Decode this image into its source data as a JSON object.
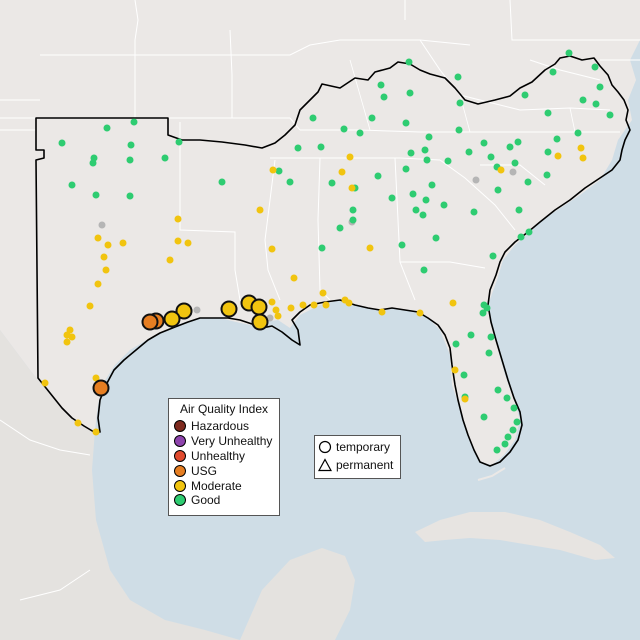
{
  "legend": {
    "title": "Air Quality Index",
    "categories": [
      {
        "label": "Hazardous",
        "color": "#7e2a1f"
      },
      {
        "label": "Very Unhealthy",
        "color": "#8e44ad"
      },
      {
        "label": "Unhealthy",
        "color": "#e04a2e"
      },
      {
        "label": "USG",
        "color": "#e67e22"
      },
      {
        "label": "Moderate",
        "color": "#f1c40f"
      },
      {
        "label": "Good",
        "color": "#2ecc71"
      }
    ]
  },
  "shape_legend": {
    "items": [
      {
        "label": "temporary",
        "shape": "circle"
      },
      {
        "label": "permanent",
        "shape": "triangle"
      }
    ]
  },
  "colors": {
    "water": "#cfdde6",
    "land": "#ece9e7",
    "state_border": "#ffffff",
    "texas_outline": "#000000",
    "good": "#2ecc71",
    "moderate": "#f1c40f",
    "usg": "#e67e22",
    "no_data": "#b5b5b5"
  }
}
